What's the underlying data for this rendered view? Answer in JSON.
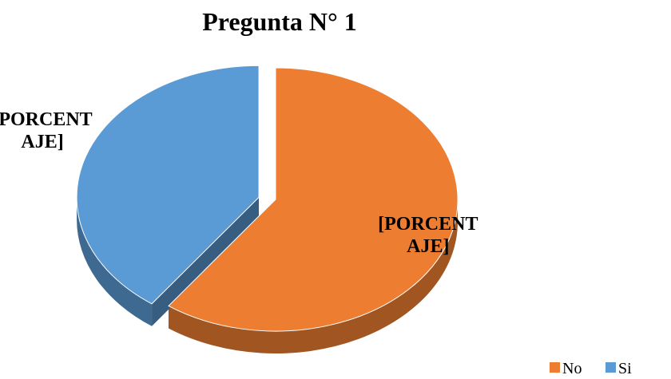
{
  "chart_data": {
    "type": "pie",
    "title": "Pregunta N° 1",
    "categories": [
      "No",
      "Si"
    ],
    "values": [
      60,
      40
    ],
    "value_labels": [
      "[PORCENTAJE]",
      "[PORCENTAJE]"
    ],
    "colors": [
      "#ed7d31",
      "#5b9bd5"
    ],
    "legend": "bottom-right"
  }
}
